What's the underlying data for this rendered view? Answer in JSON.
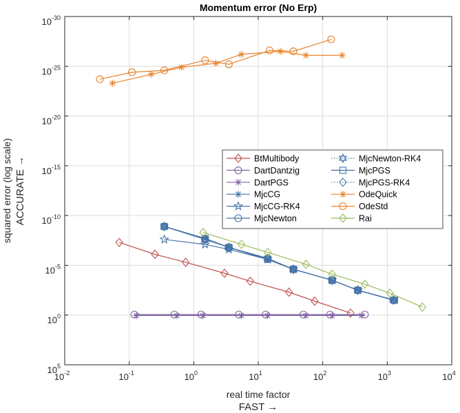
{
  "chart_data": {
    "type": "line",
    "title": "Momentum error (No Erp)",
    "xlabel": "real time factor",
    "xlabel_sub": "FAST →",
    "ylabel": "squared error (log scale)",
    "ylabel_sub": "ACCURATE →",
    "x_scale": "log",
    "y_scale": "log",
    "y_reversed": true,
    "xlim": [
      0.01,
      10000
    ],
    "ylim_exponents_top_to_bottom": [
      -30,
      5
    ],
    "x_ticks": [
      {
        "base": "10",
        "exp": "-2"
      },
      {
        "base": "10",
        "exp": "-1"
      },
      {
        "base": "10",
        "exp": "0"
      },
      {
        "base": "10",
        "exp": "1"
      },
      {
        "base": "10",
        "exp": "2"
      },
      {
        "base": "10",
        "exp": "3"
      },
      {
        "base": "10",
        "exp": "4"
      }
    ],
    "y_ticks": [
      {
        "base": "10",
        "exp": "-30",
        "value": -30
      },
      {
        "base": "10",
        "exp": "-25",
        "value": -25
      },
      {
        "base": "10",
        "exp": "-20",
        "value": -20
      },
      {
        "base": "10",
        "exp": "-15",
        "value": -15
      },
      {
        "base": "10",
        "exp": "-10",
        "value": -10
      },
      {
        "base": "10",
        "exp": "-5",
        "value": -5
      },
      {
        "base": "10",
        "exp": "0",
        "value": 0
      },
      {
        "base": "10",
        "exp": "5",
        "value": 5
      }
    ],
    "grid": true,
    "legend_position": "right-middle",
    "series": [
      {
        "name": "BtMultibody",
        "color": "#c0504d",
        "marker": "diamond",
        "dash": "solid",
        "x": [
          0.07,
          0.25,
          0.75,
          3,
          7.5,
          30,
          75,
          270
        ],
        "y_exp": [
          -7.3,
          -6.1,
          -5.3,
          -4.2,
          -3.4,
          -2.3,
          -1.4,
          -0.2
        ]
      },
      {
        "name": "DartDantzig",
        "color": "#8064a2",
        "marker": "circle",
        "dash": "solid",
        "x": [
          0.12,
          0.5,
          1.3,
          5,
          13,
          50,
          130,
          450
        ],
        "y_exp": [
          -0.05,
          -0.05,
          -0.05,
          -0.05,
          -0.05,
          -0.05,
          -0.05,
          -0.05
        ]
      },
      {
        "name": "DartPGS",
        "color": "#8064a2",
        "marker": "asterisk",
        "dash": "solid",
        "x": [
          0.13,
          0.55,
          1.4,
          5.5,
          14,
          55,
          140,
          400
        ],
        "y_exp": [
          0.05,
          0.05,
          0.05,
          0.05,
          0.05,
          0.05,
          0.05,
          0.05
        ]
      },
      {
        "name": "MjcCG",
        "color": "#4472a8",
        "marker": "asterisk",
        "dash": "solid",
        "x": [
          0.35,
          1.5,
          3.5,
          14,
          35,
          140,
          350,
          1250
        ],
        "y_exp": [
          -8.9,
          -7.7,
          -6.8,
          -5.6,
          -4.6,
          -3.5,
          -2.5,
          -1.5
        ]
      },
      {
        "name": "MjcCG-RK4",
        "color": "#4472a8",
        "marker": "star",
        "dash": "solid",
        "x": [
          0.35,
          1.5,
          3.5,
          14,
          35,
          140,
          350,
          1250
        ],
        "y_exp": [
          -7.6,
          -7.1,
          -6.6,
          -5.6,
          -4.6,
          -3.5,
          -2.5,
          -1.5
        ]
      },
      {
        "name": "MjcNewton",
        "color": "#4472a8",
        "marker": "circle",
        "dash": "solid",
        "x": [
          0.35,
          1.5,
          3.5,
          14,
          35,
          140,
          350,
          1250
        ],
        "y_exp": [
          -8.9,
          -7.6,
          -6.8,
          -5.7,
          -4.6,
          -3.5,
          -2.5,
          -1.5
        ]
      },
      {
        "name": "MjcNewton-RK4",
        "color": "#4472a8",
        "marker": "hexagram",
        "dash": "dotted",
        "x": [
          0.35,
          1.5,
          3.5,
          14,
          35,
          140,
          350,
          1250
        ],
        "y_exp": [
          -8.9,
          -7.6,
          -6.8,
          -5.7,
          -4.6,
          -3.5,
          -2.5,
          -1.5
        ]
      },
      {
        "name": "MjcPGS",
        "color": "#4472a8",
        "marker": "square",
        "dash": "solid",
        "x": [
          0.35,
          1.5,
          3.5,
          14,
          35,
          140,
          350,
          1300
        ],
        "y_exp": [
          -8.9,
          -7.7,
          -6.8,
          -5.6,
          -4.6,
          -3.5,
          -2.5,
          -1.5
        ]
      },
      {
        "name": "MjcPGS-RK4",
        "color": "#4472a8",
        "marker": "diamond",
        "dash": "dotted",
        "x": [
          0.35,
          1.5,
          3.5,
          14,
          35,
          140,
          350,
          1250
        ],
        "y_exp": [
          -8.9,
          -7.6,
          -6.8,
          -5.7,
          -4.6,
          -3.5,
          -2.5,
          -1.5
        ]
      },
      {
        "name": "OdeQuick",
        "color": "#e8842a",
        "marker": "asterisk",
        "dash": "solid",
        "x": [
          0.055,
          0.22,
          0.65,
          2.2,
          5.5,
          22,
          55,
          200
        ],
        "y_exp": [
          -23.3,
          -24.2,
          -24.9,
          -25.3,
          -26.2,
          -26.5,
          -26.1,
          -26.1
        ]
      },
      {
        "name": "OdeStd",
        "color": "#e8842a",
        "marker": "circle",
        "dash": "solid",
        "x": [
          0.035,
          0.11,
          0.35,
          1.5,
          3.5,
          15,
          35,
          135
        ],
        "y_exp": [
          -23.7,
          -24.4,
          -24.6,
          -25.6,
          -25.2,
          -26.6,
          -26.5,
          -27.7
        ]
      },
      {
        "name": "Rai",
        "color": "#9bbb59",
        "marker": "diamond",
        "dash": "solid",
        "x": [
          1.4,
          5.5,
          14,
          55,
          140,
          450,
          1100,
          3500
        ],
        "y_exp": [
          -8.3,
          -7.1,
          -6.3,
          -5.1,
          -4.1,
          -3.1,
          -2.2,
          -0.8
        ]
      }
    ]
  }
}
